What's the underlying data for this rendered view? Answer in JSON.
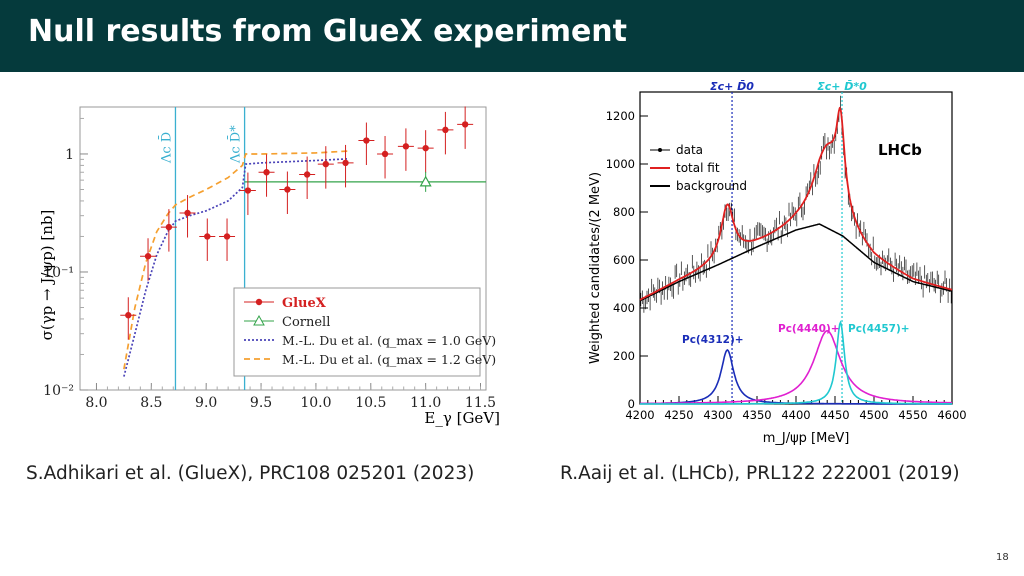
{
  "slide": {
    "title": "Null results from GlueX experiment",
    "page_number": "18",
    "captions": {
      "left": "S.Adhikari et al. (GlueX), PRC108 025201 (2023)",
      "right": "R.Aaij et al. (LHCb), PRL122 222001 (2019)"
    }
  },
  "colors": {
    "titlebar": "#053a3c",
    "gluex_points": "#d42020",
    "cornell": "#33a34a",
    "du_q1": "#4b44b8",
    "du_q12": "#f5a030",
    "threshold_lines": "#3ab0d0",
    "lhcb_fit": "#e02020",
    "pc4312": "#1a2db8",
    "pc4440": "#e020d0",
    "pc4457": "#20c8d0"
  },
  "chart_data": [
    {
      "type": "scatter",
      "xlabel": "E_γ [GeV]",
      "ylabel": "σ(γp → J/ψp) [nb]",
      "xlim": [
        7.85,
        11.55
      ],
      "ylim": [
        0.01,
        2.5
      ],
      "log_y": true,
      "x_ticks": [
        8.0,
        8.5,
        9.0,
        9.5,
        10.0,
        10.5,
        11.0,
        11.5
      ],
      "x_tick_labels": [
        "8.0",
        "8.5",
        "9.0",
        "9.5",
        "10.0",
        "10.5",
        "11.0",
        "11.5"
      ],
      "y_tick_labels": [
        "10⁻²",
        "10⁻¹",
        "1"
      ],
      "thresholds": [
        {
          "label": "Λc D̄",
          "x": 8.72
        },
        {
          "label": "Λc D̄*",
          "x": 9.35
        }
      ],
      "legend": {
        "placement": "lower-right",
        "entries": [
          "GlueX",
          "Cornell",
          "M.-L. Du et al. (q_max = 1.0 GeV)",
          "M.-L. Du et al. (q_max = 1.2 GeV)"
        ]
      },
      "series": [
        {
          "name": "GlueX",
          "x": [
            8.29,
            8.47,
            8.66,
            8.83,
            9.01,
            9.19,
            9.38,
            9.55,
            9.74,
            9.92,
            10.09,
            10.27,
            10.46,
            10.63,
            10.82,
            11.0,
            11.18,
            11.36
          ],
          "y": [
            0.043,
            0.136,
            0.24,
            0.316,
            0.2,
            0.2,
            0.49,
            0.7,
            0.5,
            0.67,
            0.82,
            0.84,
            1.3,
            1.0,
            1.16,
            1.12,
            1.6,
            1.78
          ]
        },
        {
          "name": "Cornell",
          "x": [
            11.0
          ],
          "y": [
            0.58
          ]
        },
        {
          "name": "M.-L. Du et al. (q_max = 1.0 GeV)",
          "x": [
            8.25,
            8.35,
            8.45,
            8.55,
            8.65,
            8.72,
            8.85,
            9.0,
            9.2,
            9.33,
            9.36,
            9.5,
            10.0,
            10.3
          ],
          "y": [
            0.013,
            0.03,
            0.07,
            0.14,
            0.22,
            0.27,
            0.3,
            0.33,
            0.4,
            0.52,
            0.82,
            0.84,
            0.88,
            0.91
          ]
        },
        {
          "name": "M.-L. Du et al. (q_max = 1.2 GeV)",
          "x": [
            8.25,
            8.35,
            8.45,
            8.55,
            8.65,
            8.72,
            8.85,
            9.0,
            9.2,
            9.33,
            9.36,
            9.5,
            10.0,
            10.3
          ],
          "y": [
            0.015,
            0.05,
            0.12,
            0.22,
            0.31,
            0.37,
            0.43,
            0.5,
            0.63,
            0.8,
            1.0,
            1.0,
            1.02,
            1.06
          ]
        },
        {
          "name": "Cornell band",
          "x": [
            9.35,
            11.55
          ],
          "y": [
            0.58,
            0.58
          ]
        }
      ]
    },
    {
      "type": "line",
      "xlabel": "m_J/ψp [MeV]",
      "ylabel": "Weighted candidates/(2 MeV)",
      "xlim": [
        4200,
        4600
      ],
      "ylim": [
        0,
        1300
      ],
      "x_ticks": [
        4200,
        4250,
        4300,
        4350,
        4400,
        4450,
        4500,
        4550,
        4600
      ],
      "y_ticks": [
        0,
        200,
        400,
        600,
        800,
        1000,
        1200
      ],
      "experiment_label": "LHCb",
      "legend": {
        "placement": "top-left",
        "entries": [
          "data",
          "total fit",
          "background"
        ]
      },
      "thresholds": [
        {
          "label": "Σc+ D̄0",
          "x": 4318
        },
        {
          "label": "Σc+ D̄*0",
          "x": 4459
        }
      ],
      "states": [
        {
          "name": "Pc(4312)+",
          "mass": 4312,
          "height": 225,
          "width": 10
        },
        {
          "name": "Pc(4440)+",
          "mass": 4440,
          "height": 305,
          "width": 21
        },
        {
          "name": "Pc(4457)+",
          "mass": 4457,
          "height": 340,
          "width": 6.4
        }
      ],
      "background": {
        "x": [
          4200,
          4250,
          4300,
          4350,
          4400,
          4430,
          4460,
          4500,
          4550,
          4600
        ],
        "y": [
          430,
          510,
          580,
          655,
          725,
          750,
          700,
          590,
          510,
          470
        ]
      }
    }
  ]
}
